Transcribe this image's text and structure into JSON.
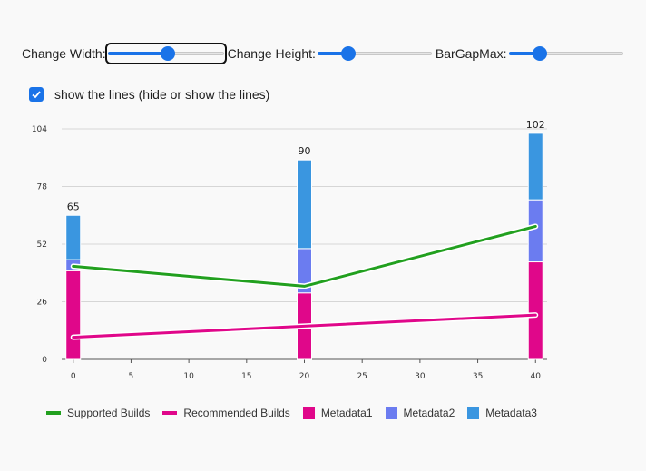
{
  "controls": {
    "width_label": "Change Width:",
    "height_label": "Change Height:",
    "gap_label": "BarGapMax:",
    "width_value": 0.52,
    "height_value": 0.24,
    "gap_value": 0.24
  },
  "toggle": {
    "label": "show the lines (hide or show the lines)",
    "checked": true
  },
  "colors": {
    "supported": "#22a01f",
    "recommended": "#e0078a",
    "metadata1": "#e0078a",
    "metadata2": "#6b7cf0",
    "metadata3": "#3a96e0",
    "accent": "#1a73e8"
  },
  "chart_data": {
    "type": "bar",
    "x_ticks": [
      0,
      5,
      10,
      15,
      20,
      25,
      30,
      35,
      40
    ],
    "y_ticks": [
      0,
      26,
      52,
      78,
      104
    ],
    "xlim": [
      -1,
      41
    ],
    "ylim": [
      0,
      104
    ],
    "grid": true,
    "legend_position": "bottom",
    "bars": [
      {
        "x": 0,
        "metadata1": 40,
        "metadata2": 5,
        "metadata3": 20,
        "total": 65
      },
      {
        "x": 20,
        "metadata1": 30,
        "metadata2": 20,
        "metadata3": 40,
        "total": 90
      },
      {
        "x": 40,
        "metadata1": 44,
        "metadata2": 28,
        "metadata3": 30,
        "total": 102
      }
    ],
    "series": [
      {
        "name": "Supported Builds",
        "type": "line",
        "x": [
          0,
          20,
          40
        ],
        "values": [
          42,
          33,
          60
        ]
      },
      {
        "name": "Recommended Builds",
        "type": "line",
        "x": [
          0,
          40
        ],
        "values": [
          10,
          20
        ]
      },
      {
        "name": "Metadata1",
        "type": "bar"
      },
      {
        "name": "Metadata2",
        "type": "bar"
      },
      {
        "name": "Metadata3",
        "type": "bar"
      }
    ]
  }
}
